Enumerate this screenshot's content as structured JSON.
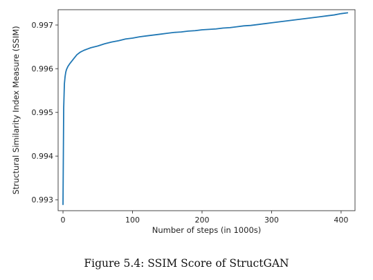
{
  "caption": "Figure 5.4: SSIM Score of StructGAN",
  "chart_data": {
    "type": "line",
    "title": "",
    "xlabel": "Number of steps (in 1000s)",
    "ylabel": "Structural Similarity Index Measure (SSIM)",
    "xlim": [
      -7,
      420
    ],
    "ylim": [
      0.99275,
      0.99735
    ],
    "x_ticks": [
      0,
      100,
      200,
      300,
      400
    ],
    "y_ticks": [
      0.993,
      0.994,
      0.995,
      0.996,
      0.997
    ],
    "x_tick_labels": [
      "0",
      "100",
      "200",
      "300",
      "400"
    ],
    "y_tick_labels": [
      "0.993",
      "0.994",
      "0.995",
      "0.996",
      "0.997"
    ],
    "grid": false,
    "color": "#1f77b4",
    "series": [
      {
        "x": [
          0,
          1,
          2,
          3,
          4,
          5,
          7,
          10,
          15,
          20,
          25,
          30,
          40,
          50,
          60,
          70,
          80,
          90,
          100,
          110,
          120,
          130,
          140,
          150,
          160,
          170,
          180,
          190,
          200,
          210,
          220,
          230,
          240,
          250,
          260,
          270,
          280,
          290,
          300,
          310,
          320,
          330,
          340,
          350,
          360,
          370,
          380,
          390,
          400,
          410
        ],
        "y": [
          0.99288,
          0.9951,
          0.99565,
          0.99582,
          0.99592,
          0.99598,
          0.99605,
          0.99612,
          0.99622,
          0.99632,
          0.99638,
          0.99642,
          0.99648,
          0.99652,
          0.99657,
          0.99661,
          0.99664,
          0.99668,
          0.9967,
          0.99673,
          0.99675,
          0.99677,
          0.99679,
          0.99681,
          0.99683,
          0.99684,
          0.99686,
          0.99687,
          0.99689,
          0.9969,
          0.99691,
          0.99693,
          0.99694,
          0.99696,
          0.99698,
          0.99699,
          0.99701,
          0.99703,
          0.99705,
          0.99707,
          0.99709,
          0.99711,
          0.99713,
          0.99715,
          0.99717,
          0.99719,
          0.99721,
          0.99723,
          0.99726,
          0.99728
        ]
      }
    ]
  }
}
